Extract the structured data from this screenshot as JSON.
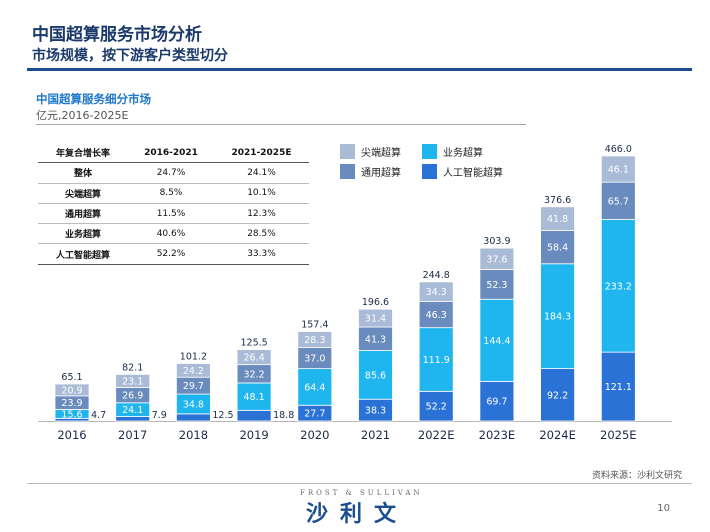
{
  "header": {
    "title": "中国超算服务市场分析",
    "subtitle": "市场规模，按下游客户类型切分"
  },
  "chart_header": {
    "title": "中国超算服务细分市场",
    "unit": "亿元,2016-2025E"
  },
  "cagr_table": {
    "header": [
      "年复合增长率",
      "2016-2021",
      "2021-2025E"
    ],
    "rows": [
      [
        "整体",
        "24.7%",
        "24.1%"
      ],
      [
        "尖端超算",
        "8.5%",
        "10.1%"
      ],
      [
        "通用超算",
        "11.5%",
        "12.3%"
      ],
      [
        "业务超算",
        "40.6%",
        "28.5%"
      ],
      [
        "人工智能超算",
        "52.2%",
        "33.3%"
      ]
    ]
  },
  "legend": [
    {
      "label": "尖端超算",
      "color": "#a9bbd6"
    },
    {
      "label": "业务超算",
      "color": "#1fb6ef"
    },
    {
      "label": "通用超算",
      "color": "#6a8bbd"
    },
    {
      "label": "人工智能超算",
      "color": "#2a72d5"
    }
  ],
  "chart_data": {
    "type": "bar",
    "stacked": true,
    "categories": [
      "2016",
      "2017",
      "2018",
      "2019",
      "2020",
      "2021",
      "2022E",
      "2023E",
      "2024E",
      "2025E"
    ],
    "series": [
      {
        "name": "人工智能超算",
        "color": "#2a72d5",
        "values": [
          4.7,
          7.9,
          12.5,
          18.8,
          27.7,
          38.3,
          52.2,
          69.7,
          92.2,
          121.1
        ]
      },
      {
        "name": "业务超算",
        "color": "#1fb6ef",
        "values": [
          15.6,
          24.1,
          34.8,
          48.1,
          64.4,
          85.6,
          111.9,
          144.4,
          184.3,
          233.2
        ]
      },
      {
        "name": "通用超算",
        "color": "#6a8bbd",
        "values": [
          23.9,
          26.9,
          29.7,
          32.2,
          37.0,
          41.3,
          46.3,
          52.3,
          58.4,
          65.7
        ]
      },
      {
        "name": "尖端超算",
        "color": "#a9bbd6",
        "values": [
          20.9,
          23.1,
          24.2,
          26.4,
          28.3,
          31.4,
          34.3,
          37.6,
          41.8,
          46.1
        ]
      }
    ],
    "totals": [
      "65.1",
      "82.1",
      "101.2",
      "125.5",
      "157.4",
      "196.6",
      "244.8",
      "303.9",
      "376.6",
      "466.0"
    ],
    "ylim": [
      0,
      466.0
    ]
  },
  "footer": {
    "source": "资料来源：沙利文研究",
    "brand_en": "FROST & SULLIVAN",
    "brand_cn": "沙利文",
    "page": "10"
  }
}
